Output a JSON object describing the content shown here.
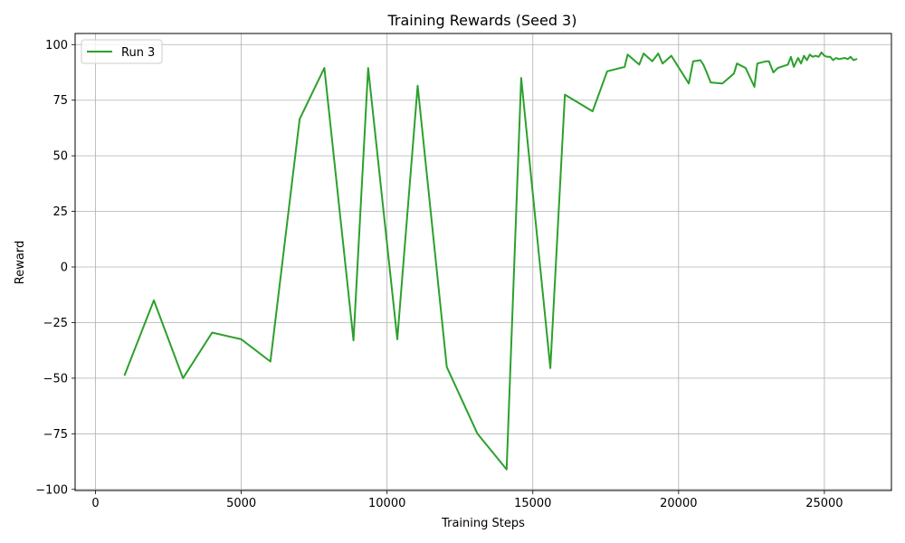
{
  "chart_data": {
    "type": "line",
    "title": "Training Rewards (Seed 3)",
    "xlabel": "Training Steps",
    "ylabel": "Reward",
    "xlim": [
      -700,
      27300
    ],
    "ylim": [
      -100.5,
      105
    ],
    "xticks": [
      0,
      5000,
      10000,
      15000,
      20000,
      25000
    ],
    "yticks": [
      -100,
      -75,
      -50,
      -25,
      0,
      25,
      50,
      75,
      100
    ],
    "grid": true,
    "legend_position": "top-left",
    "series": [
      {
        "name": "Run 3",
        "color": "#2ca02c",
        "x": [
          1000,
          2000,
          3000,
          4000,
          5000,
          6000,
          7000,
          7850,
          8850,
          9350,
          10350,
          11050,
          12050,
          13100,
          14100,
          14600,
          15600,
          16100,
          17050,
          17550,
          18150,
          18250,
          18650,
          18800,
          19100,
          19300,
          19450,
          19750,
          20350,
          20500,
          20750,
          20850,
          20950,
          21100,
          21500,
          21900,
          22000,
          22300,
          22600,
          22700,
          23000,
          23100,
          23250,
          23400,
          23750,
          23850,
          23950,
          24100,
          24200,
          24300,
          24400,
          24500,
          24600,
          24700,
          24800,
          24900,
          25000,
          25100,
          25200,
          25300,
          25400,
          25500,
          25700,
          25800,
          25900,
          26000,
          26100
        ],
        "values": [
          -48.5,
          -15,
          -50,
          -29.5,
          -32.5,
          -42.5,
          66.5,
          89.5,
          -33,
          89.5,
          -32.5,
          81.5,
          -45,
          -75,
          -91,
          85,
          -45.5,
          77.5,
          70,
          88,
          90,
          95.5,
          91,
          96,
          92.5,
          96,
          91.5,
          95,
          82.5,
          92.5,
          93,
          91,
          88,
          83,
          82.5,
          87,
          91.5,
          89.5,
          81,
          91.5,
          92.5,
          92.5,
          87.5,
          89.5,
          91,
          94.5,
          90,
          94,
          91.5,
          95,
          93,
          95.5,
          94.5,
          95,
          94.5,
          96.5,
          95,
          94.5,
          94.5,
          93,
          94,
          93.5,
          94,
          93.5,
          94.5,
          93,
          93.5
        ]
      }
    ]
  }
}
